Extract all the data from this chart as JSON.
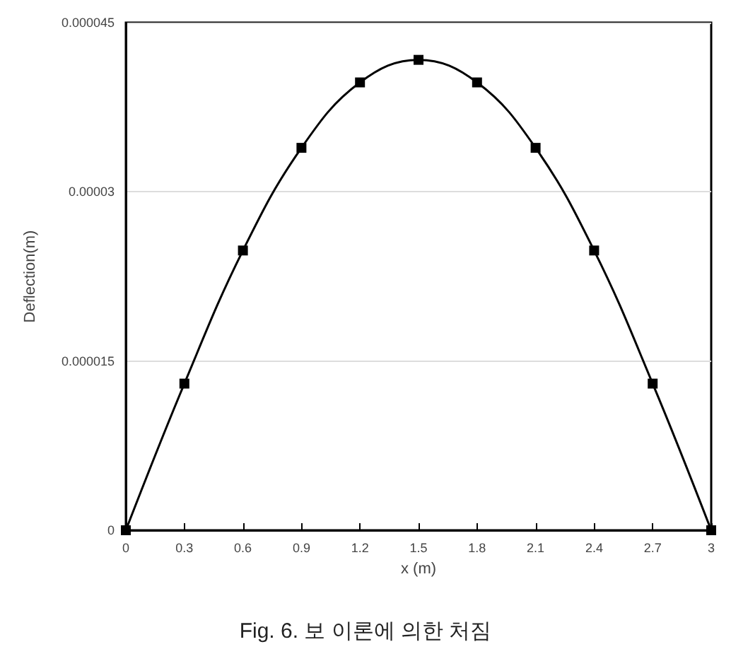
{
  "chart_data": {
    "type": "line",
    "title": "Fig. 6. 보 이론에 의한 처짐",
    "xlabel": "x (m)",
    "ylabel": "Deflection(m)",
    "x": [
      0,
      0.3,
      0.6,
      0.9,
      1.2,
      1.5,
      1.8,
      2.1,
      2.4,
      2.7,
      3
    ],
    "series": [
      {
        "color": "#000000",
        "values": [
          0,
          1.3e-05,
          2.48e-05,
          3.39e-05,
          3.97e-05,
          4.17e-05,
          3.97e-05,
          3.39e-05,
          2.48e-05,
          1.3e-05,
          0
        ]
      }
    ],
    "xlim": [
      0,
      3
    ],
    "xticks": [
      0,
      0.3,
      0.6,
      0.9,
      1.2,
      1.5,
      1.8,
      2.1,
      2.4,
      2.7,
      3
    ],
    "ylim": [
      0,
      4.5e-05
    ],
    "yticks": [
      0,
      {
        "value": 1.5e-05,
        "label": "0.000015"
      },
      {
        "value": 3e-05,
        "label": "0.00003"
      },
      {
        "value": 4.5e-05,
        "label": "0.000045"
      }
    ],
    "grid": "y",
    "marker": "square",
    "line_style": "solid"
  }
}
